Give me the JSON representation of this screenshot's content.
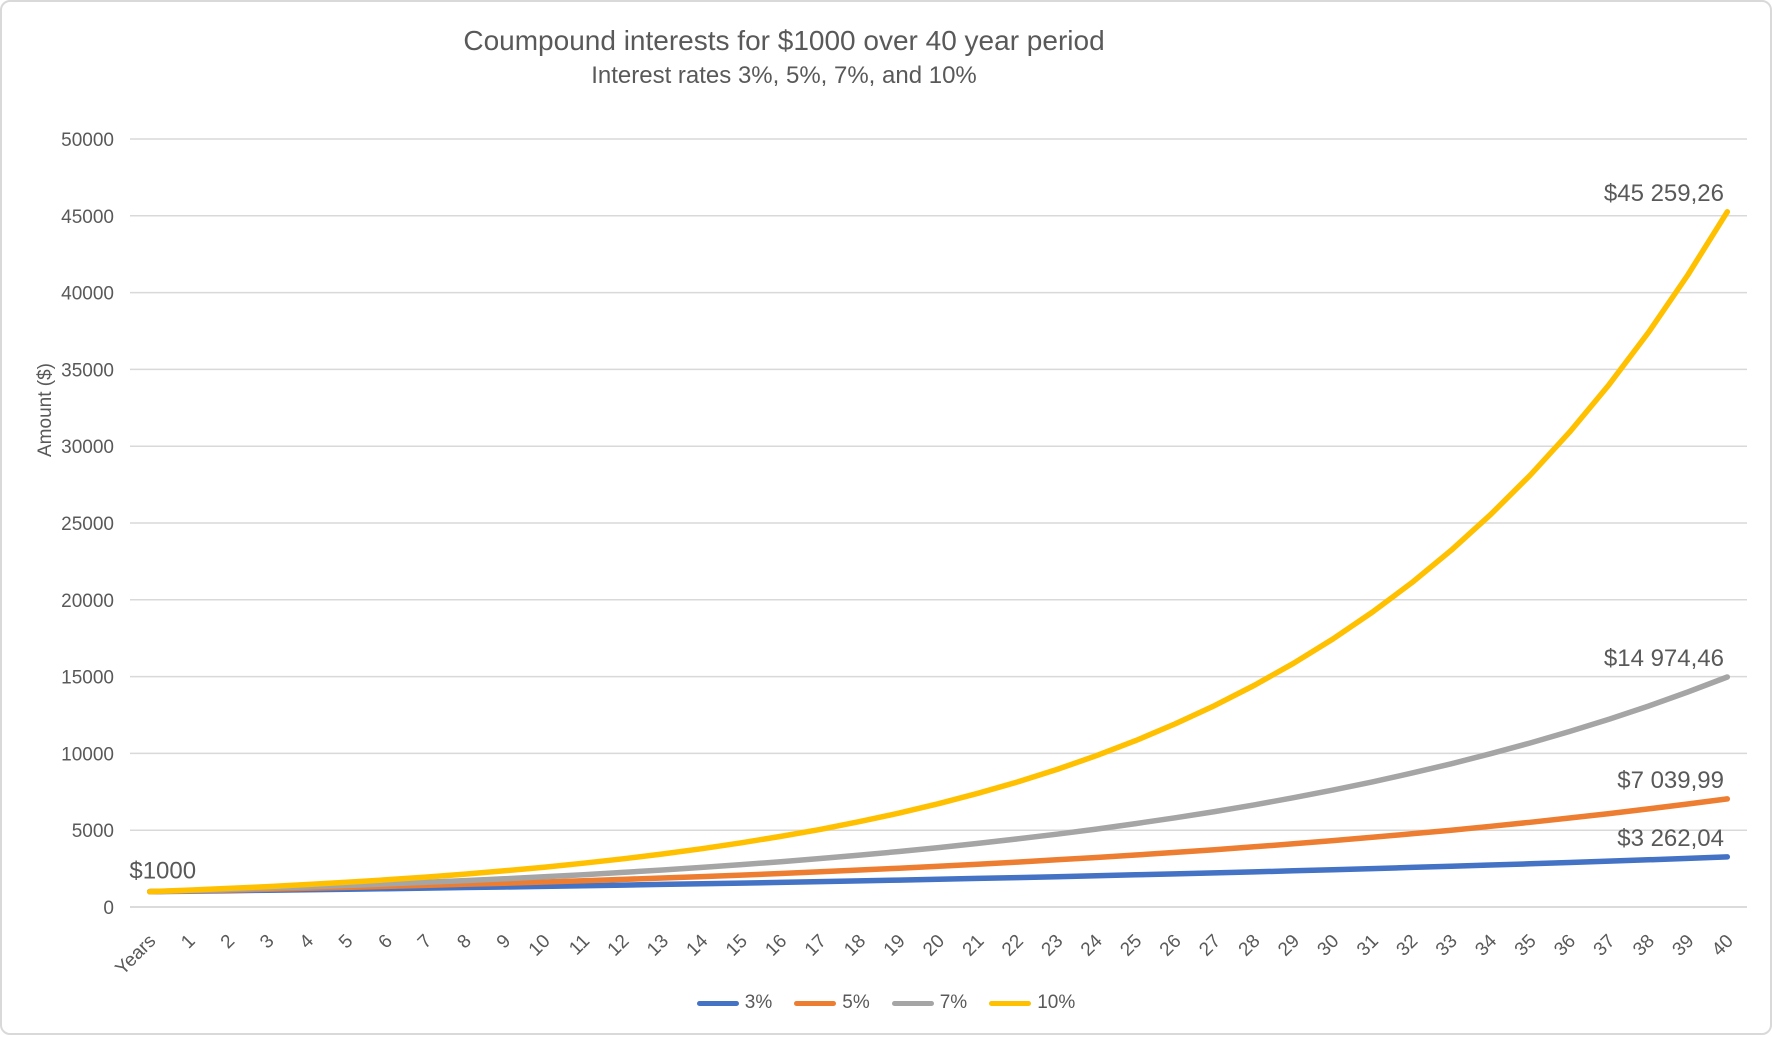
{
  "chart_data": {
    "type": "line",
    "title": "Coumpound interests for $1000 over 40 year period",
    "subtitle": "Interest rates 3%, 5%, 7%, and 10%",
    "xlabel": "",
    "ylabel": "Amount ($)",
    "ylim": [
      0,
      50000
    ],
    "y_tick_step": 5000,
    "grid": true,
    "legend_position": "bottom",
    "colors": {
      "text": "#595959",
      "gridline": "#d9d9d9",
      "axis_line": "#cfcfcf"
    },
    "categories": [
      "Years",
      "1",
      "2",
      "3",
      "4",
      "5",
      "6",
      "7",
      "8",
      "9",
      "10",
      "11",
      "12",
      "13",
      "14",
      "15",
      "16",
      "17",
      "18",
      "19",
      "20",
      "21",
      "22",
      "23",
      "24",
      "25",
      "26",
      "27",
      "28",
      "29",
      "30",
      "31",
      "32",
      "33",
      "34",
      "35",
      "36",
      "37",
      "38",
      "39",
      "40"
    ],
    "start_label": "$1000",
    "series": [
      {
        "name": "3%",
        "rate": 0.03,
        "color": "#4472C4",
        "end_label": "$3 262,04",
        "values": [
          1000,
          1030,
          1060.9,
          1092.73,
          1125.51,
          1159.27,
          1194.05,
          1229.87,
          1266.77,
          1304.77,
          1343.92,
          1384.23,
          1425.76,
          1468.53,
          1512.59,
          1557.97,
          1604.71,
          1652.85,
          1702.43,
          1753.51,
          1806.11,
          1860.29,
          1916.1,
          1973.59,
          2032.79,
          2093.78,
          2156.59,
          2221.29,
          2287.93,
          2356.57,
          2427.26,
          2500.08,
          2575.08,
          2652.34,
          2731.91,
          2813.86,
          2898.28,
          2985.23,
          3074.78,
          3167.03,
          3262.04
        ]
      },
      {
        "name": "5%",
        "rate": 0.05,
        "color": "#ED7D31",
        "end_label": "$7 039,99",
        "values": [
          1000,
          1050,
          1102.5,
          1157.63,
          1215.51,
          1276.28,
          1340.1,
          1407.1,
          1477.46,
          1551.33,
          1628.89,
          1710.34,
          1795.86,
          1885.65,
          1979.93,
          2078.93,
          2182.87,
          2292.02,
          2406.62,
          2526.95,
          2653.3,
          2785.96,
          2925.26,
          3071.52,
          3225.1,
          3386.35,
          3555.67,
          3733.46,
          3920.13,
          4116.14,
          4321.94,
          4538.04,
          4764.94,
          5003.19,
          5253.35,
          5516.02,
          5791.82,
          6081.41,
          6385.48,
          6704.75,
          7039.99
        ]
      },
      {
        "name": "7%",
        "rate": 0.07,
        "color": "#A5A5A5",
        "end_label": "$14 974,46",
        "values": [
          1000,
          1070,
          1144.9,
          1225.04,
          1310.8,
          1402.55,
          1500.73,
          1605.78,
          1718.19,
          1838.46,
          1967.15,
          2104.85,
          2252.19,
          2409.85,
          2578.53,
          2759.03,
          2952.16,
          3158.82,
          3379.93,
          3616.53,
          3869.68,
          4140.56,
          4430.4,
          4740.53,
          5072.37,
          5427.43,
          5807.35,
          6213.87,
          6648.84,
          7114.26,
          7612.26,
          8145.11,
          8715.27,
          9325.34,
          9978.11,
          10676.58,
          11423.94,
          12223.62,
          13079.27,
          13994.82,
          14974.46
        ]
      },
      {
        "name": "10%",
        "rate": 0.1,
        "color": "#FFC000",
        "end_label": "$45 259,26",
        "values": [
          1000,
          1100,
          1210,
          1331,
          1464.1,
          1610.51,
          1771.56,
          1948.72,
          2143.59,
          2357.95,
          2593.74,
          2853.12,
          3138.43,
          3452.27,
          3797.5,
          4177.25,
          4594.97,
          5054.47,
          5559.92,
          6115.91,
          6727.5,
          7400.25,
          8140.27,
          8954.3,
          9849.73,
          10834.71,
          11918.18,
          13109.99,
          14420.99,
          15863.09,
          17449.4,
          19194.34,
          21113.78,
          23225.15,
          25547.67,
          28102.44,
          30912.68,
          34003.95,
          37404.34,
          41144.78,
          45259.26
        ]
      }
    ]
  }
}
